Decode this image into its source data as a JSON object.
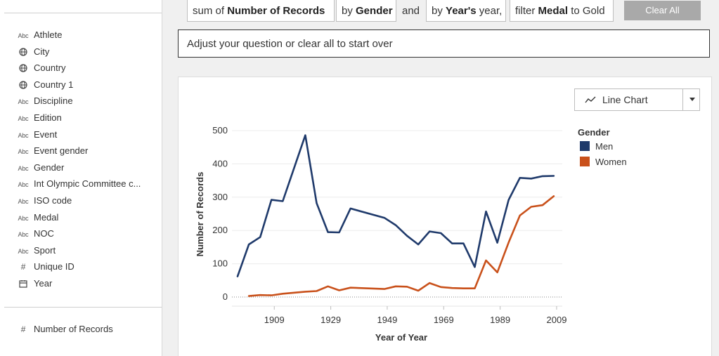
{
  "sidebar": {
    "dimensions": [
      {
        "label": "Athlete",
        "icon": "abc-icon"
      },
      {
        "label": "City",
        "icon": "globe-icon"
      },
      {
        "label": "Country",
        "icon": "globe-icon"
      },
      {
        "label": "Country 1",
        "icon": "globe-icon"
      },
      {
        "label": "Discipline",
        "icon": "abc-icon"
      },
      {
        "label": "Edition",
        "icon": "abc-icon"
      },
      {
        "label": "Event",
        "icon": "abc-icon"
      },
      {
        "label": "Event gender",
        "icon": "abc-icon"
      },
      {
        "label": "Gender",
        "icon": "abc-icon"
      },
      {
        "label": "Int Olympic Committee c...",
        "icon": "abc-icon"
      },
      {
        "label": "ISO code",
        "icon": "abc-icon"
      },
      {
        "label": "Medal",
        "icon": "abc-icon"
      },
      {
        "label": "NOC",
        "icon": "abc-icon"
      },
      {
        "label": "Sport",
        "icon": "abc-icon"
      },
      {
        "label": "Unique ID",
        "icon": "hash-icon"
      },
      {
        "label": "Year",
        "icon": "calendar-icon"
      }
    ],
    "abc_text": "Abc",
    "measures": [
      {
        "label": "Number of Records",
        "icon": "hash-icon"
      }
    ]
  },
  "query": {
    "pill1_prefix": "sum of",
    "pill1_bold": "Number of Records",
    "pill2_prefix": "by",
    "pill2_bold": "Gender",
    "conj": "and",
    "pill3_prefix": "by",
    "pill3_bold": "Year's",
    "pill3_suffix": "year,",
    "pill4_prefix": "filter",
    "pill4_bold": "Medal",
    "pill4_suffix": "to Gold",
    "clear_label": "Clear All",
    "adjust_text": "Adjust your question or clear all to start over"
  },
  "chart_type_selector": {
    "label": "Line Chart",
    "icon": "line-chart-icon"
  },
  "colors": {
    "men": "#1f3a6b",
    "women": "#c9511b"
  },
  "chart_data": {
    "type": "line",
    "xlabel": "Year of Year",
    "ylabel": "Number of Records",
    "ylim": [
      0,
      500
    ],
    "xlim": [
      1894,
      2011
    ],
    "yticks": [
      0,
      100,
      200,
      300,
      400,
      500
    ],
    "xticks": [
      1909,
      1929,
      1949,
      1969,
      1989,
      2009
    ],
    "legend_title": "Gender",
    "legend_position": "right",
    "grid": "horizontal",
    "series": [
      {
        "name": "Men",
        "x": [
          1896,
          1900,
          1904,
          1908,
          1912,
          1920,
          1924,
          1928,
          1932,
          1936,
          1948,
          1952,
          1956,
          1960,
          1964,
          1968,
          1972,
          1976,
          1980,
          1984,
          1988,
          1992,
          1996,
          2000,
          2004,
          2008
        ],
        "values": [
          62,
          158,
          180,
          292,
          288,
          486,
          282,
          195,
          194,
          266,
          238,
          216,
          184,
          158,
          197,
          192,
          161,
          161,
          90,
          257,
          163,
          292,
          358,
          356,
          363,
          364
        ]
      },
      {
        "name": "Women",
        "x": [
          1900,
          1904,
          1908,
          1912,
          1920,
          1924,
          1928,
          1932,
          1936,
          1948,
          1952,
          1956,
          1960,
          1964,
          1968,
          1972,
          1976,
          1980,
          1984,
          1988,
          1992,
          1996,
          2000,
          2004,
          2008
        ],
        "values": [
          3,
          6,
          5,
          10,
          16,
          18,
          32,
          20,
          28,
          24,
          32,
          31,
          19,
          42,
          30,
          27,
          26,
          26,
          110,
          74,
          164,
          245,
          271,
          276,
          303
        ]
      }
    ]
  }
}
